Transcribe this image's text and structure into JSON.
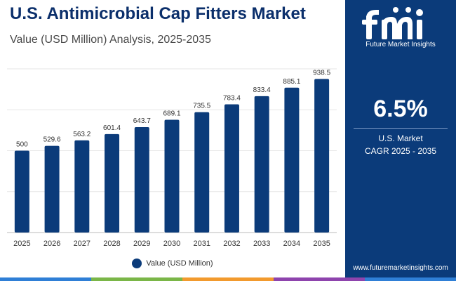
{
  "header": {
    "title": "U.S. Antimicrobial Cap Fitters Market",
    "subtitle": "Value (USD Million) Analysis, 2025-2035"
  },
  "colors": {
    "bar": "#0b3b7a",
    "panel": "#0b3b7a",
    "gridline": "#e6e6e6",
    "stripe": [
      "#2f7fd6",
      "#7ab648",
      "#f29a2e",
      "#8e44ad",
      "#2f7fd6"
    ]
  },
  "chart_data": {
    "type": "bar",
    "categories": [
      "2025",
      "2026",
      "2027",
      "2028",
      "2029",
      "2030",
      "2031",
      "2032",
      "2033",
      "2034",
      "2035"
    ],
    "series": [
      {
        "name": "Value (USD Million)",
        "values": [
          500,
          529.6,
          563.2,
          601.4,
          643.7,
          689.1,
          735.5,
          783.4,
          833.4,
          885.1,
          938.5
        ]
      }
    ],
    "value_labels": [
      "500",
      "529.6",
      "563.2",
      "601.4",
      "643.7",
      "689.1",
      "735.5",
      "783.4",
      "833.4",
      "885.1",
      "938.5"
    ],
    "ylim": [
      0,
      1000
    ],
    "grid": "horizontal",
    "legend_position": "bottom"
  },
  "legend": {
    "label": "Value (USD Million)"
  },
  "sidebar": {
    "logo_text": "Future Market Insights",
    "cagr_value": "6.5%",
    "cagr_label_line1": "U.S. Market",
    "cagr_label_line2": "CAGR 2025 - 2035",
    "website": "www.futuremarketinsights.com"
  }
}
